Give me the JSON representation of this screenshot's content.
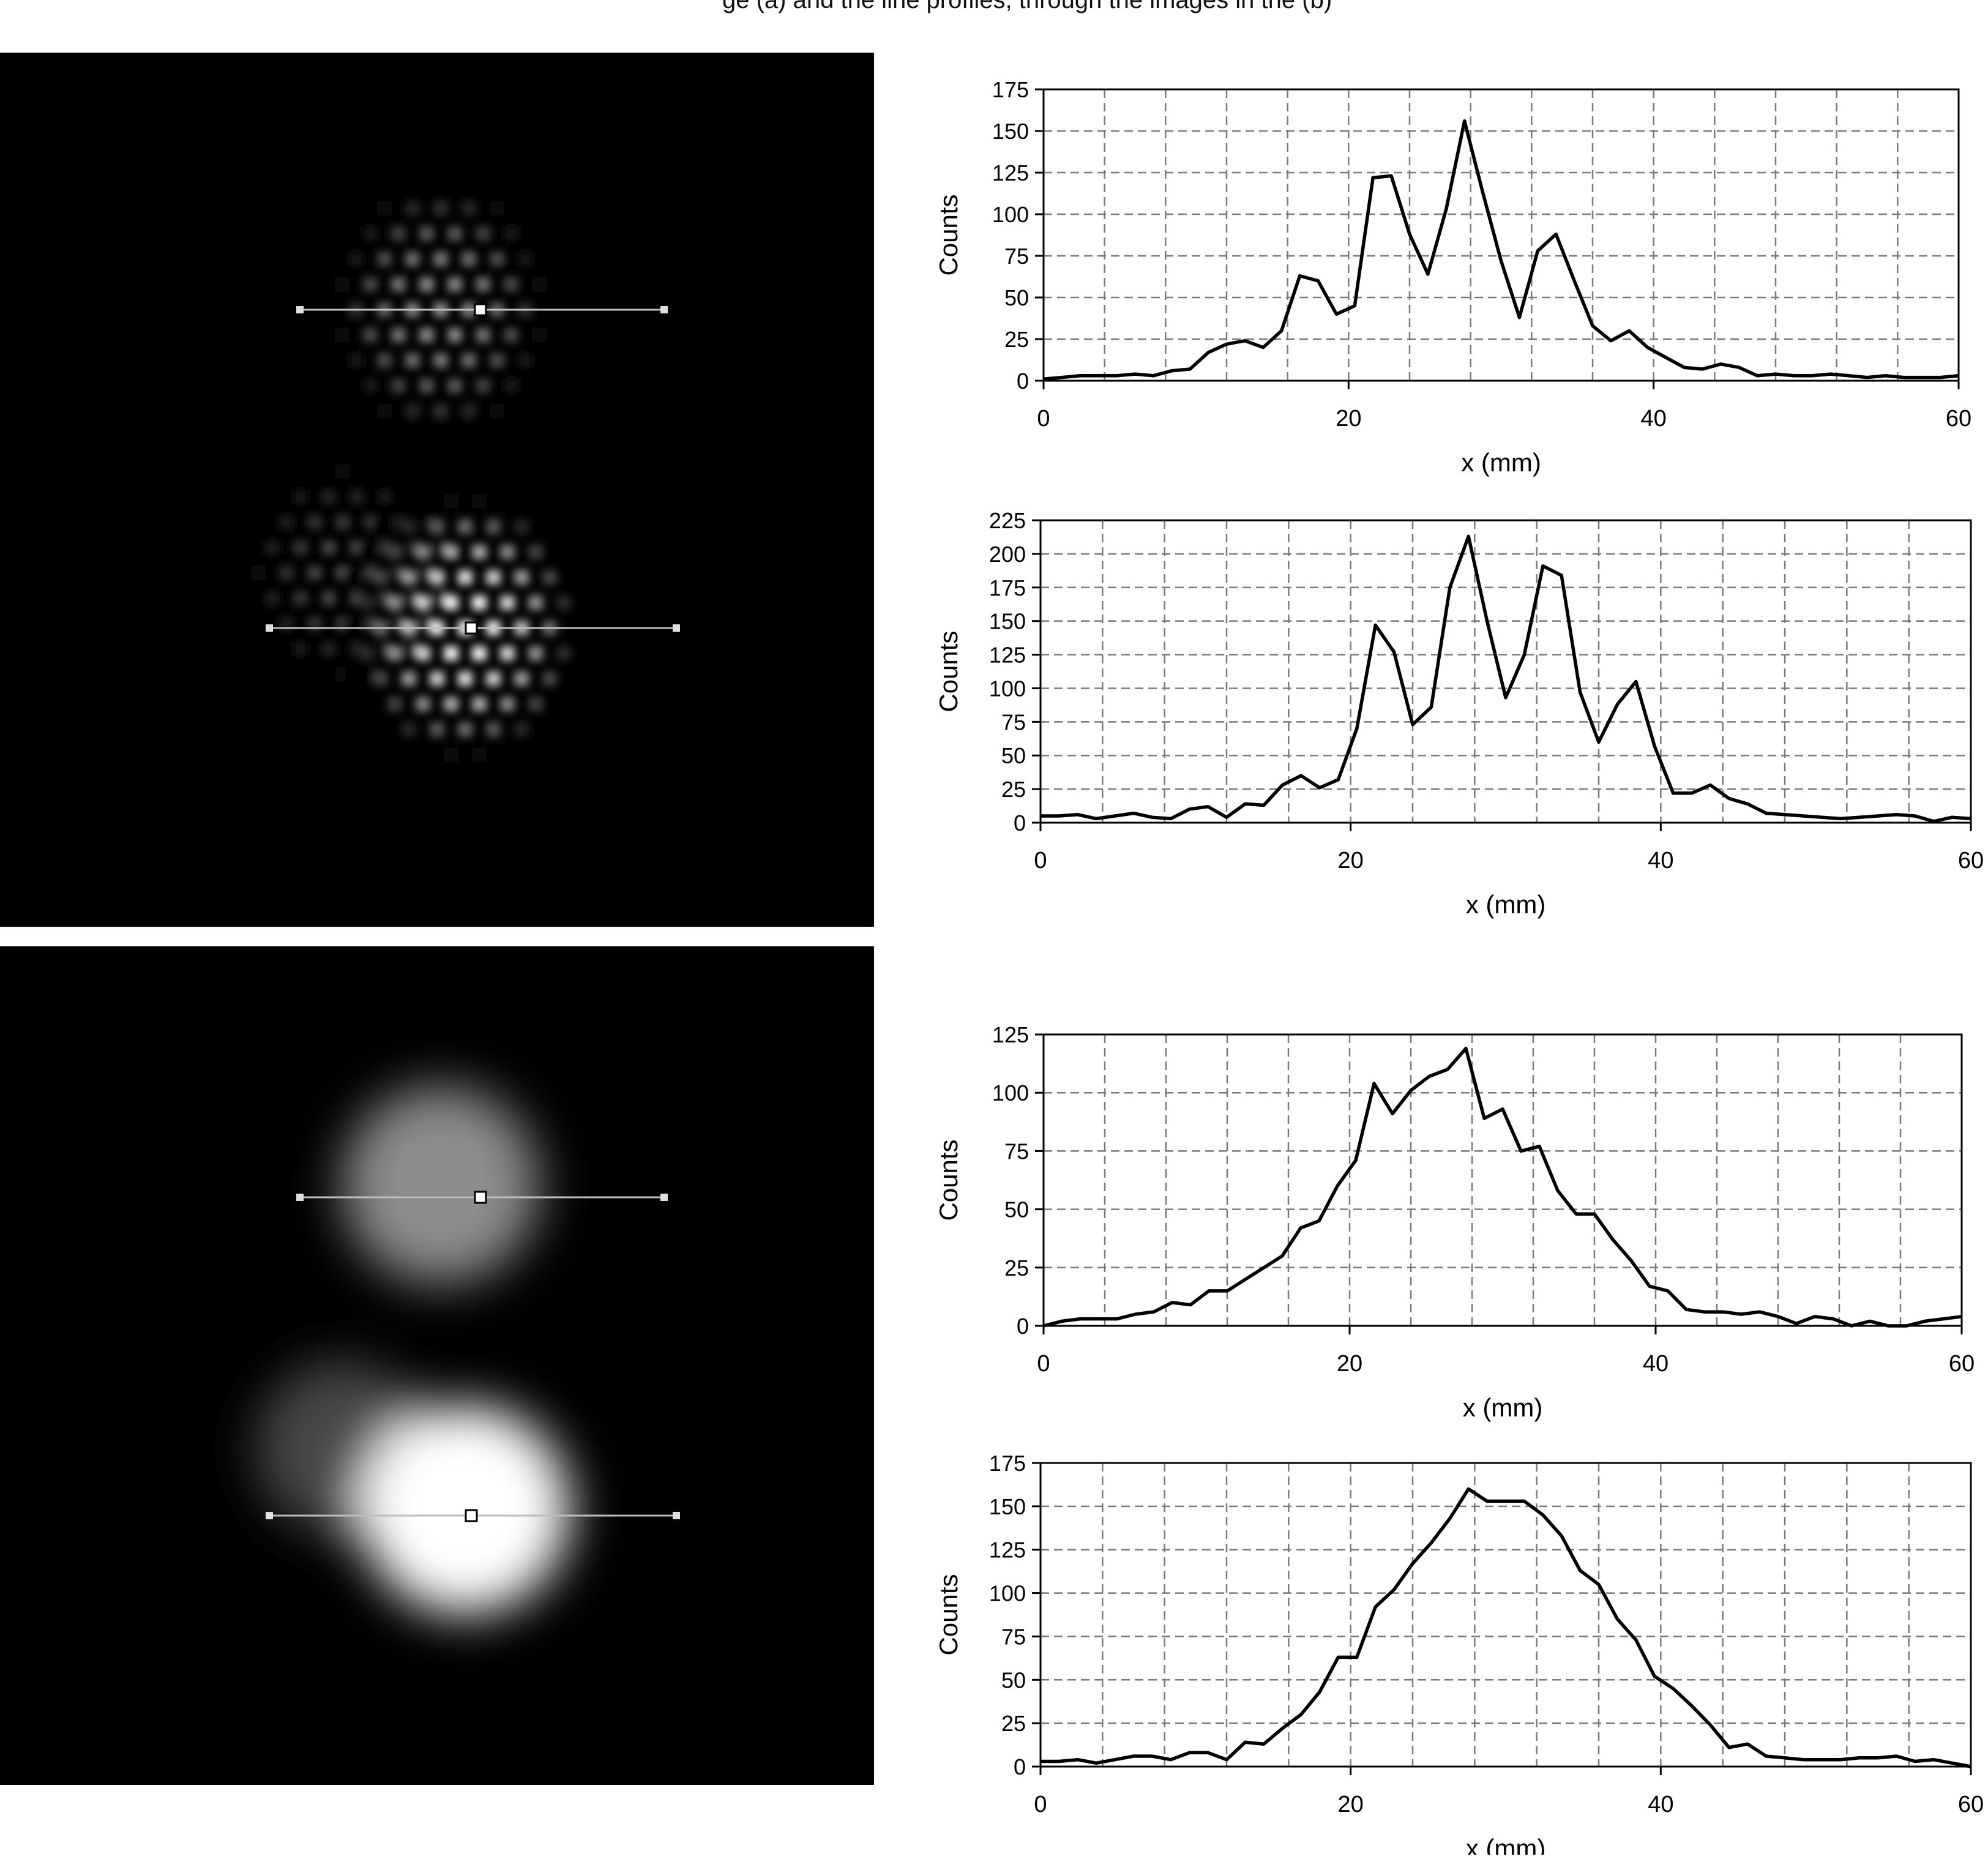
{
  "caption_fragment": "ge (a) and the line profiles, through the images in the (b)",
  "images": [
    {
      "name": "top-image",
      "pattern": "multi-pinhole"
    },
    {
      "name": "bottom-image",
      "pattern": "blurred"
    }
  ],
  "chart_data": [
    {
      "type": "line",
      "xlabel": "x (mm)",
      "ylabel": "Counts",
      "xlim": [
        0,
        60
      ],
      "ylim": [
        0,
        175
      ],
      "xticks": [
        0,
        20,
        40,
        60
      ],
      "yticks": [
        0,
        25,
        50,
        75,
        100,
        125,
        150,
        175
      ],
      "grid": true,
      "x": [
        0,
        1.2,
        2.4,
        3.6,
        4.8,
        6,
        7.2,
        8.4,
        9.6,
        10.8,
        12,
        13.2,
        14.4,
        15.6,
        16.8,
        18,
        19.2,
        20.4,
        21.6,
        22.8,
        24,
        25.2,
        26.4,
        27.6,
        28.8,
        30,
        31.2,
        32.4,
        33.6,
        34.8,
        36,
        37.2,
        38.4,
        39.6,
        40.8,
        42,
        43.2,
        44.4,
        45.6,
        46.8,
        48,
        49.2,
        50.4,
        51.6,
        52.8,
        54,
        55.2,
        56.4,
        57.6,
        58.8,
        60
      ],
      "y": [
        1,
        2,
        3,
        3,
        3,
        4,
        3,
        6,
        7,
        17,
        22,
        24,
        20,
        30,
        63,
        60,
        40,
        45,
        122,
        123,
        88,
        64,
        103,
        156,
        113,
        72,
        38,
        78,
        88,
        60,
        33,
        24,
        30,
        20,
        14,
        8,
        7,
        10,
        8,
        3,
        4,
        3,
        3,
        4,
        3,
        2,
        3,
        2,
        2,
        2,
        3
      ]
    },
    {
      "type": "line",
      "xlabel": "x (mm)",
      "ylabel": "Counts",
      "xlim": [
        0,
        60
      ],
      "ylim": [
        0,
        225
      ],
      "xticks": [
        0,
        20,
        40,
        60
      ],
      "yticks": [
        0,
        25,
        50,
        75,
        100,
        125,
        150,
        175,
        200,
        225
      ],
      "grid": true,
      "x": [
        0,
        1.2,
        2.4,
        3.6,
        4.8,
        6,
        7.2,
        8.4,
        9.6,
        10.8,
        12,
        13.2,
        14.4,
        15.6,
        16.8,
        18,
        19.2,
        20.4,
        21.6,
        22.8,
        24,
        25.2,
        26.4,
        27.6,
        28.8,
        30,
        31.2,
        32.4,
        33.6,
        34.8,
        36,
        37.2,
        38.4,
        39.6,
        40.8,
        42,
        43.2,
        44.4,
        45.6,
        46.8,
        48,
        49.2,
        50.4,
        51.6,
        52.8,
        54,
        55.2,
        56.4,
        57.6,
        58.8,
        60
      ],
      "y": [
        5,
        5,
        6,
        3,
        5,
        7,
        4,
        3,
        10,
        12,
        4,
        14,
        13,
        28,
        35,
        26,
        32,
        70,
        147,
        127,
        73,
        86,
        175,
        213,
        150,
        93,
        125,
        191,
        184,
        97,
        60,
        88,
        105,
        57,
        22,
        22,
        28,
        18,
        14,
        7,
        6,
        5,
        4,
        3,
        4,
        5,
        6,
        5,
        1,
        4,
        3
      ]
    },
    {
      "type": "line",
      "xlabel": "x (mm)",
      "ylabel": "Counts",
      "xlim": [
        0,
        60
      ],
      "ylim": [
        0,
        125
      ],
      "xticks": [
        0,
        20,
        40,
        60
      ],
      "yticks": [
        0,
        25,
        50,
        75,
        100,
        125
      ],
      "grid": true,
      "x": [
        0,
        1.2,
        2.4,
        3.6,
        4.8,
        6,
        7.2,
        8.4,
        9.6,
        10.8,
        12,
        13.2,
        14.4,
        15.6,
        16.8,
        18,
        19.2,
        20.4,
        21.6,
        22.8,
        24,
        25.2,
        26.4,
        27.6,
        28.8,
        30,
        31.2,
        32.4,
        33.6,
        34.8,
        36,
        37.2,
        38.4,
        39.6,
        40.8,
        42,
        43.2,
        44.4,
        45.6,
        46.8,
        48,
        49.2,
        50.4,
        51.6,
        52.8,
        54,
        55.2,
        56.4,
        57.6,
        58.8,
        60
      ],
      "y": [
        0,
        2,
        3,
        3,
        3,
        5,
        6,
        10,
        9,
        15,
        15,
        20,
        25,
        30,
        42,
        45,
        60,
        71,
        104,
        91,
        101,
        107,
        110,
        119,
        89,
        93,
        75,
        77,
        58,
        48,
        48,
        37,
        28,
        17,
        15,
        7,
        6,
        6,
        5,
        6,
        4,
        1,
        4,
        3,
        0,
        2,
        0,
        0,
        2,
        3,
        4
      ]
    },
    {
      "type": "line",
      "xlabel": "x (mm)",
      "ylabel": "Counts",
      "xlim": [
        0,
        60
      ],
      "ylim": [
        0,
        175
      ],
      "xticks": [
        0,
        20,
        40,
        60
      ],
      "yticks": [
        0,
        25,
        50,
        75,
        100,
        125,
        150,
        175
      ],
      "grid": true,
      "x": [
        0,
        1.2,
        2.4,
        3.6,
        4.8,
        6,
        7.2,
        8.4,
        9.6,
        10.8,
        12,
        13.2,
        14.4,
        15.6,
        16.8,
        18,
        19.2,
        20.4,
        21.6,
        22.8,
        24,
        25.2,
        26.4,
        27.6,
        28.8,
        30,
        31.2,
        32.4,
        33.6,
        34.8,
        36,
        37.2,
        38.4,
        39.6,
        40.8,
        42,
        43.2,
        44.4,
        45.6,
        46.8,
        48,
        49.2,
        50.4,
        51.6,
        52.8,
        54,
        55.2,
        56.4,
        57.6,
        58.8,
        60
      ],
      "y": [
        3,
        3,
        4,
        2,
        4,
        6,
        6,
        4,
        8,
        8,
        4,
        14,
        13,
        22,
        30,
        43,
        63,
        63,
        92,
        102,
        117,
        129,
        143,
        160,
        153,
        153,
        153,
        145,
        133,
        113,
        105,
        85,
        73,
        52,
        45,
        35,
        24,
        11,
        13,
        6,
        5,
        4,
        4,
        4,
        5,
        5,
        6,
        3,
        4,
        2,
        0
      ]
    }
  ]
}
